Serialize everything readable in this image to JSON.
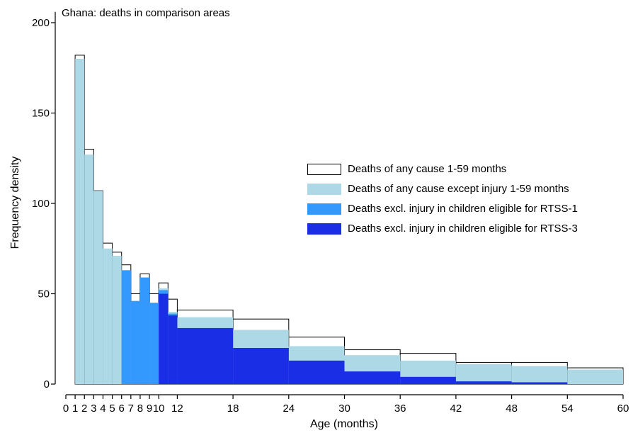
{
  "chart_data": {
    "type": "bar",
    "title": "Ghana: deaths in comparison areas",
    "xlabel": "Age (months)",
    "ylabel": "Frequency density",
    "xlim": [
      0,
      60
    ],
    "ylim": [
      0,
      210
    ],
    "x_ticks": [
      0,
      1,
      2,
      3,
      4,
      5,
      6,
      7,
      8,
      9,
      10,
      12,
      18,
      24,
      30,
      36,
      42,
      48,
      54,
      60
    ],
    "y_ticks": [
      0,
      50,
      100,
      150,
      200
    ],
    "grid": false,
    "legend_position": "right",
    "series": [
      {
        "name": "Deaths of any cause 1-59 months",
        "color": "#ffffff",
        "outline": "#000000",
        "bins": [
          {
            "x0": 1,
            "x1": 2,
            "y": 182
          },
          {
            "x0": 2,
            "x1": 3,
            "y": 130
          },
          {
            "x0": 3,
            "x1": 4,
            "y": 107
          },
          {
            "x0": 4,
            "x1": 5,
            "y": 78
          },
          {
            "x0": 5,
            "x1": 6,
            "y": 73
          },
          {
            "x0": 6,
            "x1": 7,
            "y": 66
          },
          {
            "x0": 7,
            "x1": 8,
            "y": 50
          },
          {
            "x0": 8,
            "x1": 9,
            "y": 61
          },
          {
            "x0": 9,
            "x1": 10,
            "y": 50
          },
          {
            "x0": 10,
            "x1": 11,
            "y": 56
          },
          {
            "x0": 11,
            "x1": 12,
            "y": 47
          },
          {
            "x0": 12,
            "x1": 18,
            "y": 41
          },
          {
            "x0": 18,
            "x1": 24,
            "y": 36
          },
          {
            "x0": 24,
            "x1": 30,
            "y": 26
          },
          {
            "x0": 30,
            "x1": 36,
            "y": 19
          },
          {
            "x0": 36,
            "x1": 42,
            "y": 17
          },
          {
            "x0": 42,
            "x1": 48,
            "y": 12
          },
          {
            "x0": 48,
            "x1": 54,
            "y": 12
          },
          {
            "x0": 54,
            "x1": 60,
            "y": 9
          }
        ]
      },
      {
        "name": "Deaths of any cause except injury 1-59 months",
        "color": "#add8e6",
        "bins": [
          {
            "x0": 1,
            "x1": 2,
            "y": 180
          },
          {
            "x0": 2,
            "x1": 3,
            "y": 127
          },
          {
            "x0": 3,
            "x1": 4,
            "y": 107
          },
          {
            "x0": 4,
            "x1": 5,
            "y": 75
          },
          {
            "x0": 5,
            "x1": 6,
            "y": 71
          },
          {
            "x0": 6,
            "x1": 7,
            "y": 63
          },
          {
            "x0": 7,
            "x1": 8,
            "y": 46
          },
          {
            "x0": 8,
            "x1": 9,
            "y": 59
          },
          {
            "x0": 9,
            "x1": 10,
            "y": 45
          },
          {
            "x0": 10,
            "x1": 11,
            "y": 53
          },
          {
            "x0": 11,
            "x1": 12,
            "y": 40
          },
          {
            "x0": 12,
            "x1": 18,
            "y": 37
          },
          {
            "x0": 18,
            "x1": 24,
            "y": 30
          },
          {
            "x0": 24,
            "x1": 30,
            "y": 21
          },
          {
            "x0": 30,
            "x1": 36,
            "y": 16
          },
          {
            "x0": 36,
            "x1": 42,
            "y": 13
          },
          {
            "x0": 42,
            "x1": 48,
            "y": 11
          },
          {
            "x0": 48,
            "x1": 54,
            "y": 10
          },
          {
            "x0": 54,
            "x1": 60,
            "y": 8
          }
        ]
      },
      {
        "name": "Deaths excl. injury in children eligible for RTSS-1",
        "color": "#3399ff",
        "bins": [
          {
            "x0": 6,
            "x1": 7,
            "y": 63
          },
          {
            "x0": 7,
            "x1": 8,
            "y": 46
          },
          {
            "x0": 8,
            "x1": 9,
            "y": 59
          },
          {
            "x0": 9,
            "x1": 10,
            "y": 45
          },
          {
            "x0": 10,
            "x1": 11,
            "y": 52
          },
          {
            "x0": 11,
            "x1": 12,
            "y": 39
          }
        ]
      },
      {
        "name": "Deaths excl. injury in children eligible for RTSS-3",
        "color": "#1a2ee6",
        "bins": [
          {
            "x0": 10,
            "x1": 11,
            "y": 50
          },
          {
            "x0": 11,
            "x1": 12,
            "y": 38
          },
          {
            "x0": 12,
            "x1": 18,
            "y": 31
          },
          {
            "x0": 18,
            "x1": 24,
            "y": 20
          },
          {
            "x0": 24,
            "x1": 30,
            "y": 13
          },
          {
            "x0": 30,
            "x1": 36,
            "y": 7
          },
          {
            "x0": 36,
            "x1": 42,
            "y": 4
          },
          {
            "x0": 42,
            "x1": 48,
            "y": 1.5
          },
          {
            "x0": 48,
            "x1": 54,
            "y": 1
          }
        ]
      }
    ]
  }
}
